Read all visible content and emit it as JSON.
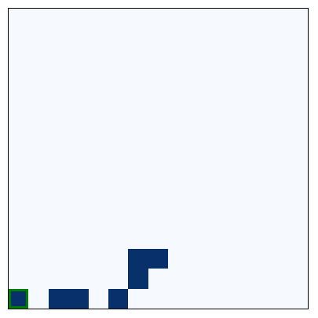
{
  "grid": {
    "rows": 15,
    "cols": 15,
    "empty_color": "#f6faff",
    "filled_color": "#08306b",
    "cursor_color": "#008000",
    "filled_cells": [
      {
        "row": 12,
        "col": 6
      },
      {
        "row": 12,
        "col": 7
      },
      {
        "row": 13,
        "col": 6
      },
      {
        "row": 14,
        "col": 2
      },
      {
        "row": 14,
        "col": 3
      },
      {
        "row": 14,
        "col": 5
      }
    ],
    "cursor": {
      "row": 14,
      "col": 0
    }
  }
}
